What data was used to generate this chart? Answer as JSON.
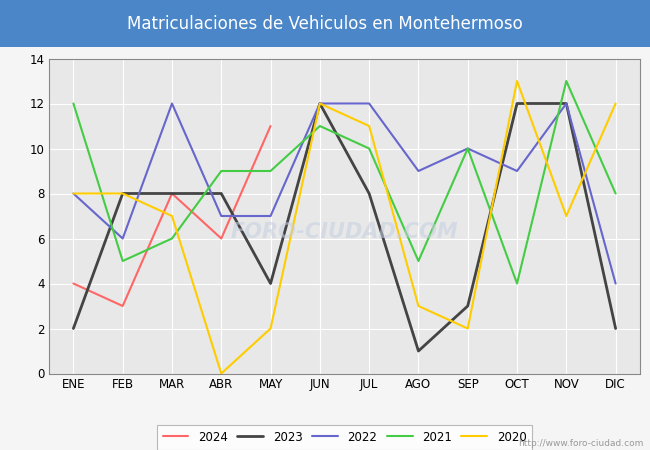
{
  "title": "Matriculaciones de Vehiculos en Montehermoso",
  "title_color": "#ffffff",
  "title_bg_color": "#4a86c8",
  "months": [
    "ENE",
    "FEB",
    "MAR",
    "ABR",
    "MAY",
    "JUN",
    "JUL",
    "AGO",
    "SEP",
    "OCT",
    "NOV",
    "DIC"
  ],
  "series": {
    "2024": {
      "values": [
        4,
        3,
        8,
        6,
        11,
        null,
        null,
        null,
        null,
        null,
        null,
        null
      ],
      "color": "#ff6666",
      "linewidth": 1.5
    },
    "2023": {
      "values": [
        2,
        8,
        8,
        8,
        4,
        12,
        8,
        1,
        3,
        12,
        12,
        2
      ],
      "color": "#444444",
      "linewidth": 2.0
    },
    "2022": {
      "values": [
        8,
        6,
        12,
        7,
        7,
        12,
        12,
        9,
        10,
        9,
        12,
        4
      ],
      "color": "#6666cc",
      "linewidth": 1.5
    },
    "2021": {
      "values": [
        12,
        5,
        6,
        9,
        9,
        11,
        10,
        5,
        10,
        4,
        13,
        8
      ],
      "color": "#44cc44",
      "linewidth": 1.5
    },
    "2020": {
      "values": [
        8,
        8,
        7,
        0,
        2,
        12,
        11,
        3,
        2,
        13,
        7,
        12
      ],
      "color": "#ffcc00",
      "linewidth": 1.5
    }
  },
  "ylim": [
    0,
    14
  ],
  "yticks": [
    0,
    2,
    4,
    6,
    8,
    10,
    12,
    14
  ],
  "plot_bg_color": "#e8e8e8",
  "grid_color": "#ffffff",
  "watermark_text": "FORO-CIUDAD.COM",
  "watermark_url": "http://www.foro-ciudad.com",
  "fig_bg_color": "#f5f5f5"
}
